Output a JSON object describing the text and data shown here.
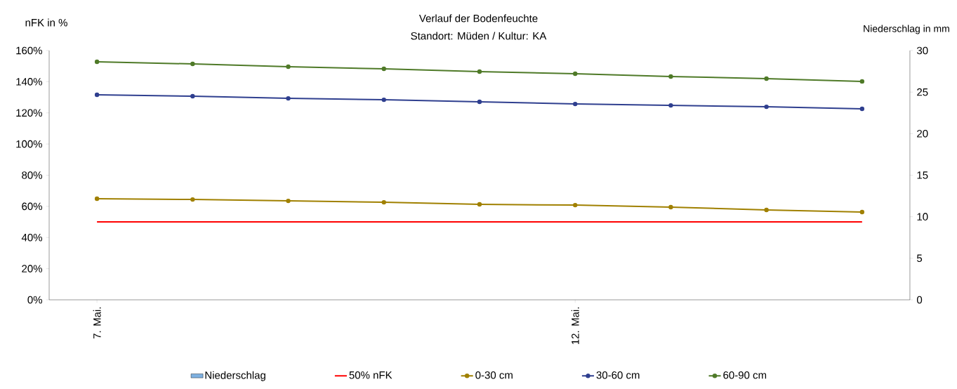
{
  "chart_data": {
    "type": "line",
    "title": "Verlauf der Bodenfeuchte",
    "subtitle": "Standort: Müden / Kultur: KA",
    "ylabel": "nFK in %",
    "y2label": "Niederschlag in mm",
    "categories": [
      "7. Mai.",
      null,
      null,
      null,
      null,
      "12. Mai.",
      null,
      null,
      null
    ],
    "series": [
      {
        "name": "Niederschlag",
        "type": "bar",
        "axis": "y2",
        "color": "#7eb0e0",
        "values": [
          0,
          0,
          0,
          0,
          0,
          0,
          0,
          0,
          0
        ]
      },
      {
        "name": "50% nFK",
        "color": "#ff0000",
        "marker": "none",
        "values": [
          50,
          50,
          50,
          50,
          50,
          50,
          50,
          50,
          50
        ]
      },
      {
        "name": "0-30 cm",
        "color": "#a08000",
        "marker": "circle",
        "values": [
          64.9,
          64.4,
          63.5,
          62.6,
          61.3,
          60.8,
          59.5,
          57.7,
          56.3
        ]
      },
      {
        "name": "30-60 cm",
        "color": "#2f3f8f",
        "marker": "circle",
        "values": [
          131.6,
          130.7,
          129.3,
          128.4,
          127.1,
          125.7,
          124.8,
          123.9,
          122.6
        ]
      },
      {
        "name": "60-90 cm",
        "color": "#4f7a28",
        "marker": "circle",
        "values": [
          152.8,
          151.4,
          149.6,
          148.3,
          146.5,
          145.1,
          143.3,
          142.0,
          140.2
        ]
      }
    ],
    "ylim": [
      0,
      160
    ],
    "yticks": [
      {
        "value": 0,
        "label": "0%"
      },
      {
        "value": 20,
        "label": "20%"
      },
      {
        "value": 40,
        "label": "40%"
      },
      {
        "value": 60,
        "label": "60%"
      },
      {
        "value": 80,
        "label": "80%"
      },
      {
        "value": 100,
        "label": "100%"
      },
      {
        "value": 120,
        "label": "120%"
      },
      {
        "value": 140,
        "label": "140%"
      },
      {
        "value": 160,
        "label": "160%"
      }
    ],
    "y2lim": [
      0,
      30
    ],
    "y2ticks": [
      0,
      5,
      10,
      15,
      20,
      25,
      30
    ],
    "grid": false,
    "legend": "bottom"
  }
}
